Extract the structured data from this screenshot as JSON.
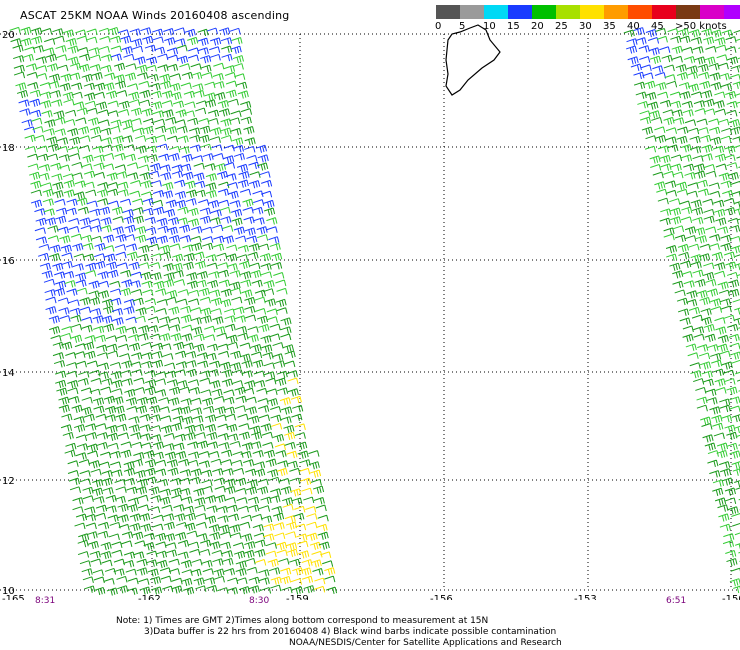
{
  "title": "ASCAT 25KM NOAA Winds 20160408 ascending",
  "legend": {
    "colors": [
      "#555555",
      "#9a9a9a",
      "#00d9f5",
      "#1a3bff",
      "#00c000",
      "#a8e000",
      "#ffe100",
      "#ff9c00",
      "#ff4d00",
      "#e8001c",
      "#7a3a14",
      "#d900c8",
      "#b000ff",
      "#560080"
    ],
    "labels": [
      {
        "text": "0",
        "at": 0
      },
      {
        "text": "5",
        "at": 2
      },
      {
        "text": "10",
        "at": 4
      },
      {
        "text": "15",
        "at": 6
      },
      {
        "text": "20",
        "at": 8
      },
      {
        "text": "25",
        "at": 10
      },
      {
        "text": "30",
        "at": 12
      },
      {
        "text": "35",
        "at": 14
      },
      {
        "text": "40",
        "at": 16
      },
      {
        "text": "45",
        "at": 18
      },
      {
        "text": ">50 knots",
        "at": 20
      }
    ]
  },
  "axes": {
    "x_ticks": [
      "-165",
      "-162",
      "-159",
      "-156",
      "-153",
      "-150"
    ],
    "y_ticks": [
      "20",
      "18",
      "16",
      "14",
      "12",
      "10"
    ]
  },
  "times": [
    "8:31",
    "8:30",
    "6:51"
  ],
  "notes": {
    "line1": "Note: 1) Times are GMT 2)Times along bottom correspond to measurement at 15N",
    "line2": "3)Data buffer is 22 hrs from 20160408 4) Black wind barbs indicate possible contamination",
    "line3": "NOAA/NESDIS/Center for Satellite Applications and Research"
  }
}
